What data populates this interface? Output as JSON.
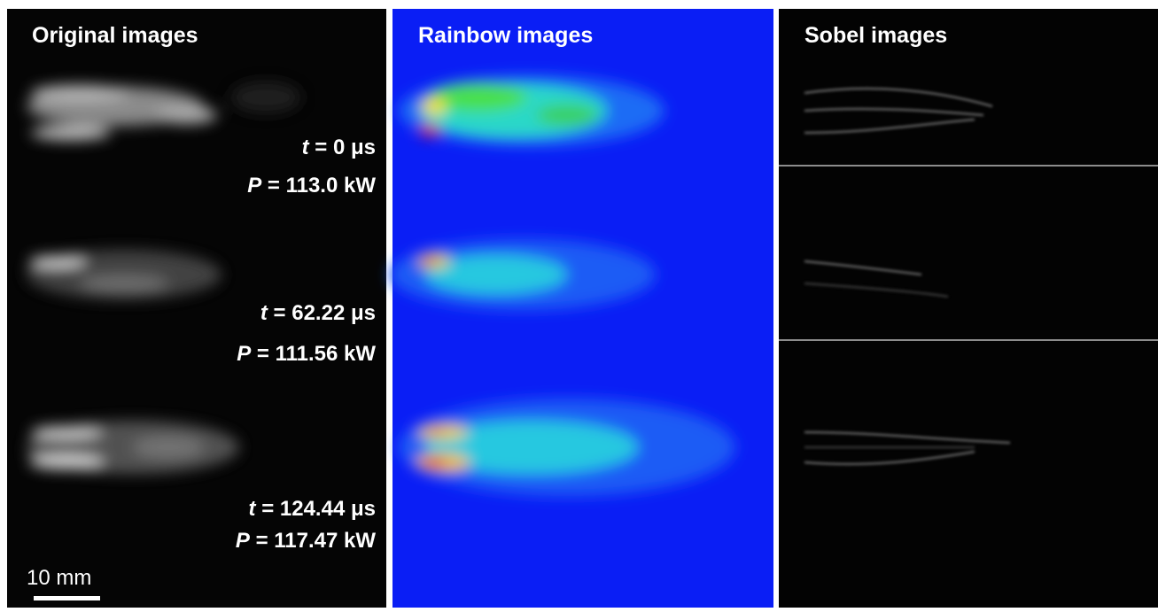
{
  "panels": [
    {
      "title": "Original images"
    },
    {
      "title": "Rainbow images"
    },
    {
      "title": "Sobel images"
    }
  ],
  "frames": [
    {
      "t": {
        "var": "t",
        "text": "= 0 μs"
      },
      "p": {
        "var": "P",
        "text": "= 113.0 kW"
      }
    },
    {
      "t": {
        "var": "t",
        "text": "= 62.22 μs"
      },
      "p": {
        "var": "P",
        "text": "= 111.56 kW"
      }
    },
    {
      "t": {
        "var": "t",
        "text": "= 124.44 μs"
      },
      "p": {
        "var": "P",
        "text": "= 117.47 kW"
      }
    }
  ],
  "scale_bar": {
    "label": "10 mm"
  }
}
